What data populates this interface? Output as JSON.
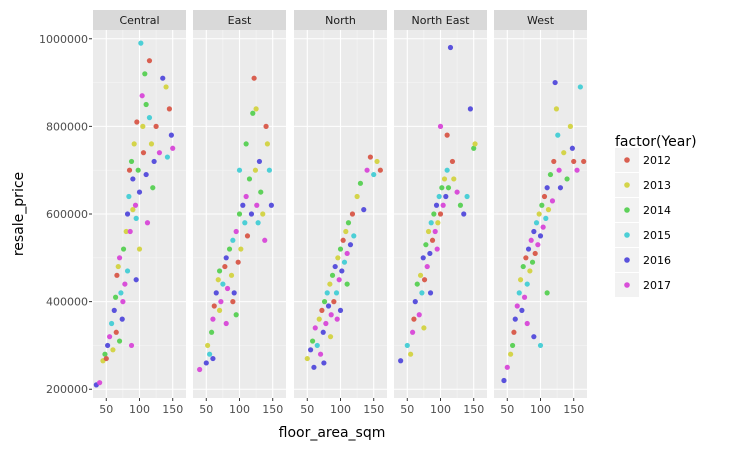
{
  "chart_data": {
    "type": "scatter",
    "facet_by": "town_region",
    "panels": [
      "Central",
      "East",
      "North",
      "North East",
      "West"
    ],
    "xlabel": "floor_area_sqm",
    "ylabel": "resale_price",
    "xlim": [
      30,
      170
    ],
    "ylim": [
      180000,
      1020000
    ],
    "x_ticks": [
      50,
      100,
      150
    ],
    "x_tick_labels": [
      "50",
      "100",
      "150"
    ],
    "y_ticks": [
      200000,
      400000,
      600000,
      800000,
      1000000
    ],
    "y_tick_labels": [
      "200000",
      "400000",
      "600000",
      "800000",
      "1000000"
    ],
    "grid": true,
    "legend": {
      "title": "factor(Year)",
      "placement": "right",
      "entries": [
        {
          "label": "2012",
          "color": "#d95f50"
        },
        {
          "label": "2013",
          "color": "#d4d44a"
        },
        {
          "label": "2014",
          "color": "#5ed15a"
        },
        {
          "label": "2015",
          "color": "#4ccfd6"
        },
        {
          "label": "2016",
          "color": "#5a52dc"
        },
        {
          "label": "2017",
          "color": "#d94fd9"
        }
      ]
    },
    "series_colors": {
      "2012": "#d95f50",
      "2013": "#d4d44a",
      "2014": "#5ed15a",
      "2015": "#4ccfd6",
      "2016": "#5a52dc",
      "2017": "#d94fd9"
    },
    "points": {
      "Central": [
        [
          35,
          210000,
          "2016"
        ],
        [
          40,
          215000,
          "2017"
        ],
        [
          45,
          265000,
          "2013"
        ],
        [
          48,
          280000,
          "2014"
        ],
        [
          50,
          270000,
          "2012"
        ],
        [
          52,
          300000,
          "2016"
        ],
        [
          55,
          320000,
          "2017"
        ],
        [
          58,
          350000,
          "2015"
        ],
        [
          60,
          290000,
          "2013"
        ],
        [
          62,
          380000,
          "2016"
        ],
        [
          64,
          410000,
          "2014"
        ],
        [
          66,
          460000,
          "2012"
        ],
        [
          68,
          480000,
          "2013"
        ],
        [
          70,
          500000,
          "2017"
        ],
        [
          72,
          420000,
          "2015"
        ],
        [
          74,
          360000,
          "2016"
        ],
        [
          76,
          520000,
          "2014"
        ],
        [
          78,
          440000,
          "2017"
        ],
        [
          80,
          560000,
          "2013"
        ],
        [
          82,
          600000,
          "2016"
        ],
        [
          84,
          640000,
          "2015"
        ],
        [
          85,
          700000,
          "2012"
        ],
        [
          86,
          560000,
          "2017"
        ],
        [
          88,
          720000,
          "2014"
        ],
        [
          90,
          680000,
          "2016"
        ],
        [
          92,
          760000,
          "2013"
        ],
        [
          94,
          620000,
          "2017"
        ],
        [
          95,
          590000,
          "2015"
        ],
        [
          96,
          810000,
          "2012"
        ],
        [
          98,
          700000,
          "2014"
        ],
        [
          100,
          650000,
          "2016"
        ],
        [
          102,
          990000,
          "2015"
        ],
        [
          104,
          870000,
          "2017"
        ],
        [
          105,
          800000,
          "2013"
        ],
        [
          106,
          740000,
          "2012"
        ],
        [
          108,
          920000,
          "2014"
        ],
        [
          110,
          690000,
          "2016"
        ],
        [
          112,
          580000,
          "2017"
        ],
        [
          115,
          820000,
          "2015"
        ],
        [
          118,
          760000,
          "2013"
        ],
        [
          120,
          660000,
          "2014"
        ],
        [
          122,
          720000,
          "2016"
        ],
        [
          125,
          800000,
          "2012"
        ],
        [
          130,
          740000,
          "2017"
        ],
        [
          135,
          910000,
          "2016"
        ],
        [
          140,
          890000,
          "2013"
        ],
        [
          142,
          730000,
          "2015"
        ],
        [
          145,
          840000,
          "2012"
        ],
        [
          148,
          780000,
          "2016"
        ],
        [
          150,
          750000,
          "2017"
        ],
        [
          65,
          330000,
          "2012"
        ],
        [
          70,
          310000,
          "2014"
        ],
        [
          75,
          400000,
          "2017"
        ],
        [
          88,
          300000,
          "2017"
        ],
        [
          95,
          450000,
          "2016"
        ],
        [
          100,
          520000,
          "2013"
        ],
        [
          110,
          850000,
          "2014"
        ],
        [
          115,
          950000,
          "2012"
        ],
        [
          90,
          610000,
          "2013"
        ],
        [
          82,
          470000,
          "2015"
        ]
      ],
      "East": [
        [
          40,
          245000,
          "2017"
        ],
        [
          50,
          260000,
          "2016"
        ],
        [
          52,
          300000,
          "2013"
        ],
        [
          55,
          280000,
          "2015"
        ],
        [
          58,
          330000,
          "2014"
        ],
        [
          60,
          360000,
          "2017"
        ],
        [
          62,
          390000,
          "2012"
        ],
        [
          65,
          420000,
          "2016"
        ],
        [
          68,
          450000,
          "2013"
        ],
        [
          70,
          470000,
          "2014"
        ],
        [
          72,
          400000,
          "2017"
        ],
        [
          75,
          440000,
          "2015"
        ],
        [
          78,
          480000,
          "2012"
        ],
        [
          80,
          500000,
          "2016"
        ],
        [
          82,
          430000,
          "2017"
        ],
        [
          85,
          520000,
          "2014"
        ],
        [
          88,
          460000,
          "2013"
        ],
        [
          90,
          540000,
          "2015"
        ],
        [
          92,
          420000,
          "2016"
        ],
        [
          95,
          560000,
          "2017"
        ],
        [
          98,
          490000,
          "2012"
        ],
        [
          100,
          600000,
          "2014"
        ],
        [
          102,
          520000,
          "2013"
        ],
        [
          105,
          620000,
          "2016"
        ],
        [
          108,
          580000,
          "2015"
        ],
        [
          110,
          640000,
          "2017"
        ],
        [
          112,
          550000,
          "2012"
        ],
        [
          115,
          680000,
          "2014"
        ],
        [
          118,
          600000,
          "2016"
        ],
        [
          120,
          830000,
          "2014"
        ],
        [
          122,
          910000,
          "2012"
        ],
        [
          124,
          700000,
          "2013"
        ],
        [
          126,
          620000,
          "2017"
        ],
        [
          128,
          580000,
          "2015"
        ],
        [
          130,
          720000,
          "2016"
        ],
        [
          132,
          650000,
          "2014"
        ],
        [
          135,
          600000,
          "2013"
        ],
        [
          138,
          540000,
          "2017"
        ],
        [
          140,
          800000,
          "2012"
        ],
        [
          142,
          760000,
          "2013"
        ],
        [
          145,
          700000,
          "2015"
        ],
        [
          148,
          620000,
          "2016"
        ],
        [
          100,
          700000,
          "2015"
        ],
        [
          110,
          760000,
          "2014"
        ],
        [
          125,
          840000,
          "2013"
        ],
        [
          60,
          270000,
          "2016"
        ],
        [
          70,
          380000,
          "2013"
        ],
        [
          80,
          350000,
          "2017"
        ],
        [
          90,
          400000,
          "2012"
        ],
        [
          95,
          370000,
          "2014"
        ]
      ],
      "North": [
        [
          50,
          270000,
          "2013"
        ],
        [
          55,
          290000,
          "2016"
        ],
        [
          58,
          310000,
          "2014"
        ],
        [
          60,
          250000,
          "2016"
        ],
        [
          62,
          340000,
          "2017"
        ],
        [
          65,
          300000,
          "2015"
        ],
        [
          68,
          360000,
          "2013"
        ],
        [
          70,
          280000,
          "2017"
        ],
        [
          72,
          380000,
          "2012"
        ],
        [
          74,
          330000,
          "2016"
        ],
        [
          76,
          400000,
          "2014"
        ],
        [
          78,
          350000,
          "2017"
        ],
        [
          80,
          420000,
          "2015"
        ],
        [
          82,
          390000,
          "2016"
        ],
        [
          84,
          440000,
          "2013"
        ],
        [
          86,
          370000,
          "2017"
        ],
        [
          88,
          460000,
          "2014"
        ],
        [
          90,
          400000,
          "2012"
        ],
        [
          92,
          480000,
          "2016"
        ],
        [
          94,
          420000,
          "2015"
        ],
        [
          96,
          500000,
          "2013"
        ],
        [
          98,
          450000,
          "2017"
        ],
        [
          100,
          520000,
          "2014"
        ],
        [
          102,
          470000,
          "2016"
        ],
        [
          104,
          540000,
          "2012"
        ],
        [
          106,
          490000,
          "2015"
        ],
        [
          108,
          560000,
          "2013"
        ],
        [
          110,
          510000,
          "2017"
        ],
        [
          112,
          580000,
          "2014"
        ],
        [
          115,
          530000,
          "2016"
        ],
        [
          118,
          600000,
          "2012"
        ],
        [
          120,
          550000,
          "2015"
        ],
        [
          125,
          640000,
          "2013"
        ],
        [
          130,
          670000,
          "2014"
        ],
        [
          135,
          610000,
          "2016"
        ],
        [
          140,
          700000,
          "2017"
        ],
        [
          145,
          730000,
          "2012"
        ],
        [
          150,
          690000,
          "2015"
        ],
        [
          155,
          720000,
          "2013"
        ],
        [
          160,
          700000,
          "2012"
        ],
        [
          100,
          380000,
          "2016"
        ],
        [
          95,
          360000,
          "2017"
        ],
        [
          85,
          320000,
          "2013"
        ],
        [
          75,
          260000,
          "2016"
        ],
        [
          110,
          440000,
          "2014"
        ]
      ],
      "North East": [
        [
          40,
          265000,
          "2016"
        ],
        [
          50,
          300000,
          "2015"
        ],
        [
          55,
          280000,
          "2013"
        ],
        [
          58,
          330000,
          "2017"
        ],
        [
          60,
          360000,
          "2012"
        ],
        [
          62,
          400000,
          "2016"
        ],
        [
          65,
          440000,
          "2014"
        ],
        [
          68,
          370000,
          "2017"
        ],
        [
          70,
          460000,
          "2013"
        ],
        [
          72,
          420000,
          "2015"
        ],
        [
          74,
          500000,
          "2016"
        ],
        [
          76,
          450000,
          "2012"
        ],
        [
          78,
          530000,
          "2014"
        ],
        [
          80,
          480000,
          "2017"
        ],
        [
          82,
          560000,
          "2013"
        ],
        [
          84,
          510000,
          "2016"
        ],
        [
          86,
          580000,
          "2015"
        ],
        [
          88,
          540000,
          "2012"
        ],
        [
          90,
          600000,
          "2014"
        ],
        [
          92,
          560000,
          "2017"
        ],
        [
          94,
          620000,
          "2016"
        ],
        [
          96,
          580000,
          "2013"
        ],
        [
          98,
          640000,
          "2015"
        ],
        [
          100,
          600000,
          "2012"
        ],
        [
          102,
          660000,
          "2014"
        ],
        [
          104,
          620000,
          "2017"
        ],
        [
          106,
          680000,
          "2013"
        ],
        [
          108,
          640000,
          "2016"
        ],
        [
          110,
          700000,
          "2015"
        ],
        [
          112,
          660000,
          "2014"
        ],
        [
          115,
          980000,
          "2016"
        ],
        [
          118,
          720000,
          "2012"
        ],
        [
          120,
          680000,
          "2013"
        ],
        [
          125,
          650000,
          "2017"
        ],
        [
          130,
          620000,
          "2014"
        ],
        [
          135,
          600000,
          "2016"
        ],
        [
          140,
          640000,
          "2015"
        ],
        [
          145,
          840000,
          "2016"
        ],
        [
          150,
          750000,
          "2014"
        ],
        [
          152,
          760000,
          "2013"
        ],
        [
          100,
          800000,
          "2017"
        ],
        [
          110,
          780000,
          "2012"
        ],
        [
          95,
          520000,
          "2017"
        ],
        [
          85,
          420000,
          "2016"
        ],
        [
          75,
          340000,
          "2013"
        ]
      ],
      "West": [
        [
          45,
          220000,
          "2016"
        ],
        [
          50,
          250000,
          "2017"
        ],
        [
          55,
          280000,
          "2013"
        ],
        [
          58,
          300000,
          "2014"
        ],
        [
          60,
          330000,
          "2012"
        ],
        [
          62,
          360000,
          "2016"
        ],
        [
          65,
          390000,
          "2017"
        ],
        [
          68,
          420000,
          "2015"
        ],
        [
          70,
          450000,
          "2013"
        ],
        [
          72,
          380000,
          "2016"
        ],
        [
          74,
          480000,
          "2014"
        ],
        [
          76,
          410000,
          "2017"
        ],
        [
          78,
          500000,
          "2012"
        ],
        [
          80,
          440000,
          "2015"
        ],
        [
          82,
          520000,
          "2016"
        ],
        [
          84,
          470000,
          "2013"
        ],
        [
          86,
          540000,
          "2017"
        ],
        [
          88,
          490000,
          "2014"
        ],
        [
          90,
          560000,
          "2016"
        ],
        [
          92,
          510000,
          "2012"
        ],
        [
          94,
          580000,
          "2015"
        ],
        [
          96,
          530000,
          "2017"
        ],
        [
          98,
          600000,
          "2013"
        ],
        [
          100,
          550000,
          "2016"
        ],
        [
          102,
          620000,
          "2014"
        ],
        [
          104,
          570000,
          "2017"
        ],
        [
          106,
          640000,
          "2012"
        ],
        [
          108,
          590000,
          "2015"
        ],
        [
          110,
          660000,
          "2016"
        ],
        [
          112,
          610000,
          "2013"
        ],
        [
          115,
          690000,
          "2014"
        ],
        [
          118,
          630000,
          "2017"
        ],
        [
          120,
          720000,
          "2012"
        ],
        [
          122,
          900000,
          "2016"
        ],
        [
          124,
          840000,
          "2013"
        ],
        [
          126,
          780000,
          "2015"
        ],
        [
          128,
          700000,
          "2017"
        ],
        [
          130,
          660000,
          "2016"
        ],
        [
          135,
          740000,
          "2013"
        ],
        [
          140,
          680000,
          "2014"
        ],
        [
          145,
          800000,
          "2013"
        ],
        [
          148,
          750000,
          "2016"
        ],
        [
          150,
          720000,
          "2012"
        ],
        [
          155,
          700000,
          "2017"
        ],
        [
          160,
          890000,
          "2015"
        ],
        [
          165,
          720000,
          "2012"
        ],
        [
          100,
          300000,
          "2015"
        ],
        [
          90,
          320000,
          "2016"
        ],
        [
          80,
          350000,
          "2017"
        ],
        [
          110,
          420000,
          "2014"
        ]
      ]
    }
  }
}
